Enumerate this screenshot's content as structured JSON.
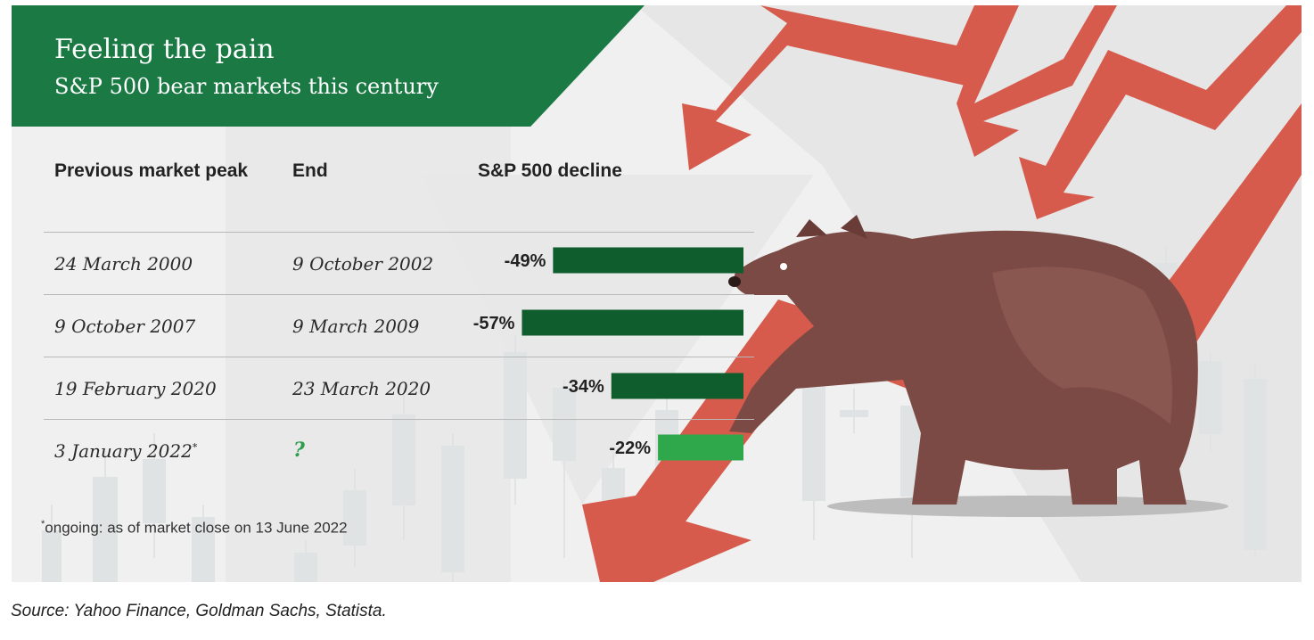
{
  "header": {
    "title": "Feeling the pain",
    "subtitle": "S&P 500 bear markets this century"
  },
  "columns": {
    "peak": "Previous market peak",
    "end": "End",
    "decline": "S&P 500 decline"
  },
  "rows": [
    {
      "peak": "24 March 2000",
      "end": "9 October 2002",
      "decline_label": "-49%"
    },
    {
      "peak": "9 October 2007",
      "end": "9 March 2009",
      "decline_label": "-57%"
    },
    {
      "peak": "19 February 2020",
      "end": "23 March 2020",
      "decline_label": "-34%"
    },
    {
      "peak": "3 January 2022",
      "peak_mark": "*",
      "end": "?",
      "decline_label": "-22%"
    }
  ],
  "footnote": {
    "mark": "*",
    "text": "ongoing: as of market close on 13 June 2022"
  },
  "source": "Source: Yahoo Finance, Goldman Sachs, Statista.",
  "colors": {
    "banner": "#1b7a44",
    "completed_bar": "#0f5c2c",
    "ongoing_bar": "#2ea84a",
    "arrow": "#d65b4c",
    "bear": "#7c4a44"
  },
  "decorations": {
    "illustration": "bear-illustration",
    "arrows": "falling-red-arrows"
  },
  "chart_data": {
    "type": "bar",
    "orientation": "horizontal",
    "categories": [
      "24 March 2000",
      "9 October 2007",
      "19 February 2020",
      "3 January 2022"
    ],
    "values": [
      -49,
      -57,
      -34,
      -22
    ],
    "ongoing": [
      false,
      false,
      false,
      true
    ],
    "title": "Feeling the pain",
    "subtitle": "S&P 500 bear markets this century",
    "xlabel": "S&P 500 decline",
    "ylabel": "Previous market peak",
    "unit": "%"
  }
}
